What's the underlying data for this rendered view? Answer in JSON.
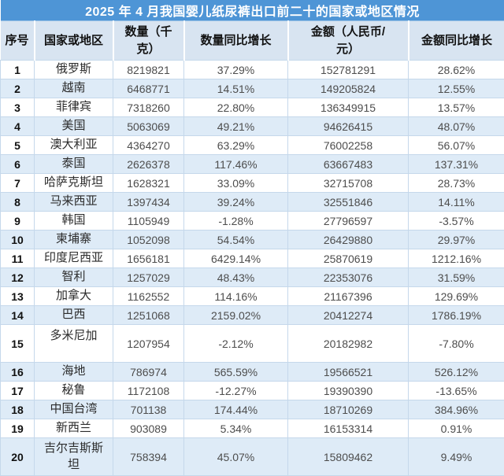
{
  "chart_data": {
    "type": "table",
    "title": "2025 年 4 月我国婴儿纸尿裤出口前二十的国家或地区情况",
    "columns": [
      "序号",
      "国家或地区",
      "数量（千\n克）",
      "数量同比增长",
      "金额（人民币/\n元）",
      "金额同比增长"
    ],
    "rows": [
      {
        "no": "1",
        "country": "俄罗斯",
        "qty": "8219821",
        "qty_yoy": "37.29%",
        "amount": "152781291",
        "amount_yoy": "28.62%"
      },
      {
        "no": "2",
        "country": "越南",
        "qty": "6468771",
        "qty_yoy": "14.51%",
        "amount": "149205824",
        "amount_yoy": "12.55%"
      },
      {
        "no": "3",
        "country": "菲律宾",
        "qty": "7318260",
        "qty_yoy": "22.80%",
        "amount": "136349915",
        "amount_yoy": "13.57%"
      },
      {
        "no": "4",
        "country": "美国",
        "qty": "5063069",
        "qty_yoy": "49.21%",
        "amount": "94626415",
        "amount_yoy": "48.07%"
      },
      {
        "no": "5",
        "country": "澳大利亚",
        "qty": "4364270",
        "qty_yoy": "63.29%",
        "amount": "76002258",
        "amount_yoy": "56.07%"
      },
      {
        "no": "6",
        "country": "泰国",
        "qty": "2626378",
        "qty_yoy": "117.46%",
        "amount": "63667483",
        "amount_yoy": "137.31%"
      },
      {
        "no": "7",
        "country": "哈萨克斯坦",
        "qty": "1628321",
        "qty_yoy": "33.09%",
        "amount": "32715708",
        "amount_yoy": "28.73%"
      },
      {
        "no": "8",
        "country": "马来西亚",
        "qty": "1397434",
        "qty_yoy": "39.24%",
        "amount": "32551846",
        "amount_yoy": "14.11%"
      },
      {
        "no": "9",
        "country": "韩国",
        "qty": "1105949",
        "qty_yoy": "-1.28%",
        "amount": "27796597",
        "amount_yoy": "-3.57%"
      },
      {
        "no": "10",
        "country": "柬埔寨",
        "qty": "1052098",
        "qty_yoy": "54.54%",
        "amount": "26429880",
        "amount_yoy": "29.97%"
      },
      {
        "no": "11",
        "country": "印度尼西亚",
        "qty": "1656181",
        "qty_yoy": "6429.14%",
        "amount": "25870619",
        "amount_yoy": "1212.16%"
      },
      {
        "no": "12",
        "country": "智利",
        "qty": "1257029",
        "qty_yoy": "48.43%",
        "amount": "22353076",
        "amount_yoy": "31.59%"
      },
      {
        "no": "13",
        "country": "加拿大",
        "qty": "1162552",
        "qty_yoy": "114.16%",
        "amount": "21167396",
        "amount_yoy": "129.69%"
      },
      {
        "no": "14",
        "country": "巴西",
        "qty": "1251068",
        "qty_yoy": "2159.02%",
        "amount": "20412274",
        "amount_yoy": "1786.19%"
      },
      {
        "no": "15",
        "country": "多米尼加",
        "qty": "1207954",
        "qty_yoy": "-2.12%",
        "amount": "20182982",
        "amount_yoy": "-7.80%",
        "tall": true,
        "country_top": true
      },
      {
        "no": "16",
        "country": "海地",
        "qty": "786974",
        "qty_yoy": "565.59%",
        "amount": "19566521",
        "amount_yoy": "526.12%"
      },
      {
        "no": "17",
        "country": "秘鲁",
        "qty": "1172108",
        "qty_yoy": "-12.27%",
        "amount": "19390390",
        "amount_yoy": "-13.65%"
      },
      {
        "no": "18",
        "country": "中国台湾",
        "qty": "701138",
        "qty_yoy": "174.44%",
        "amount": "18710269",
        "amount_yoy": "384.96%"
      },
      {
        "no": "19",
        "country": "新西兰",
        "qty": "903089",
        "qty_yoy": "5.34%",
        "amount": "16153314",
        "amount_yoy": "0.91%"
      },
      {
        "no": "20",
        "country": "吉尔吉斯斯\n坦",
        "qty": "758394",
        "qty_yoy": "45.07%",
        "amount": "15809462",
        "amount_yoy": "9.49%",
        "tall": true
      }
    ]
  },
  "colors": {
    "title_bar": "#4E95D6",
    "header_bg": "#D8E4F1",
    "band_bg": "#DEEBF7",
    "grid": "#C5D8EB",
    "title_text": "#FFFFFF",
    "header_text": "#121212",
    "rank_text": "#111111",
    "country_text": "#2B2B2B",
    "num_text": "#4D4D4D"
  }
}
